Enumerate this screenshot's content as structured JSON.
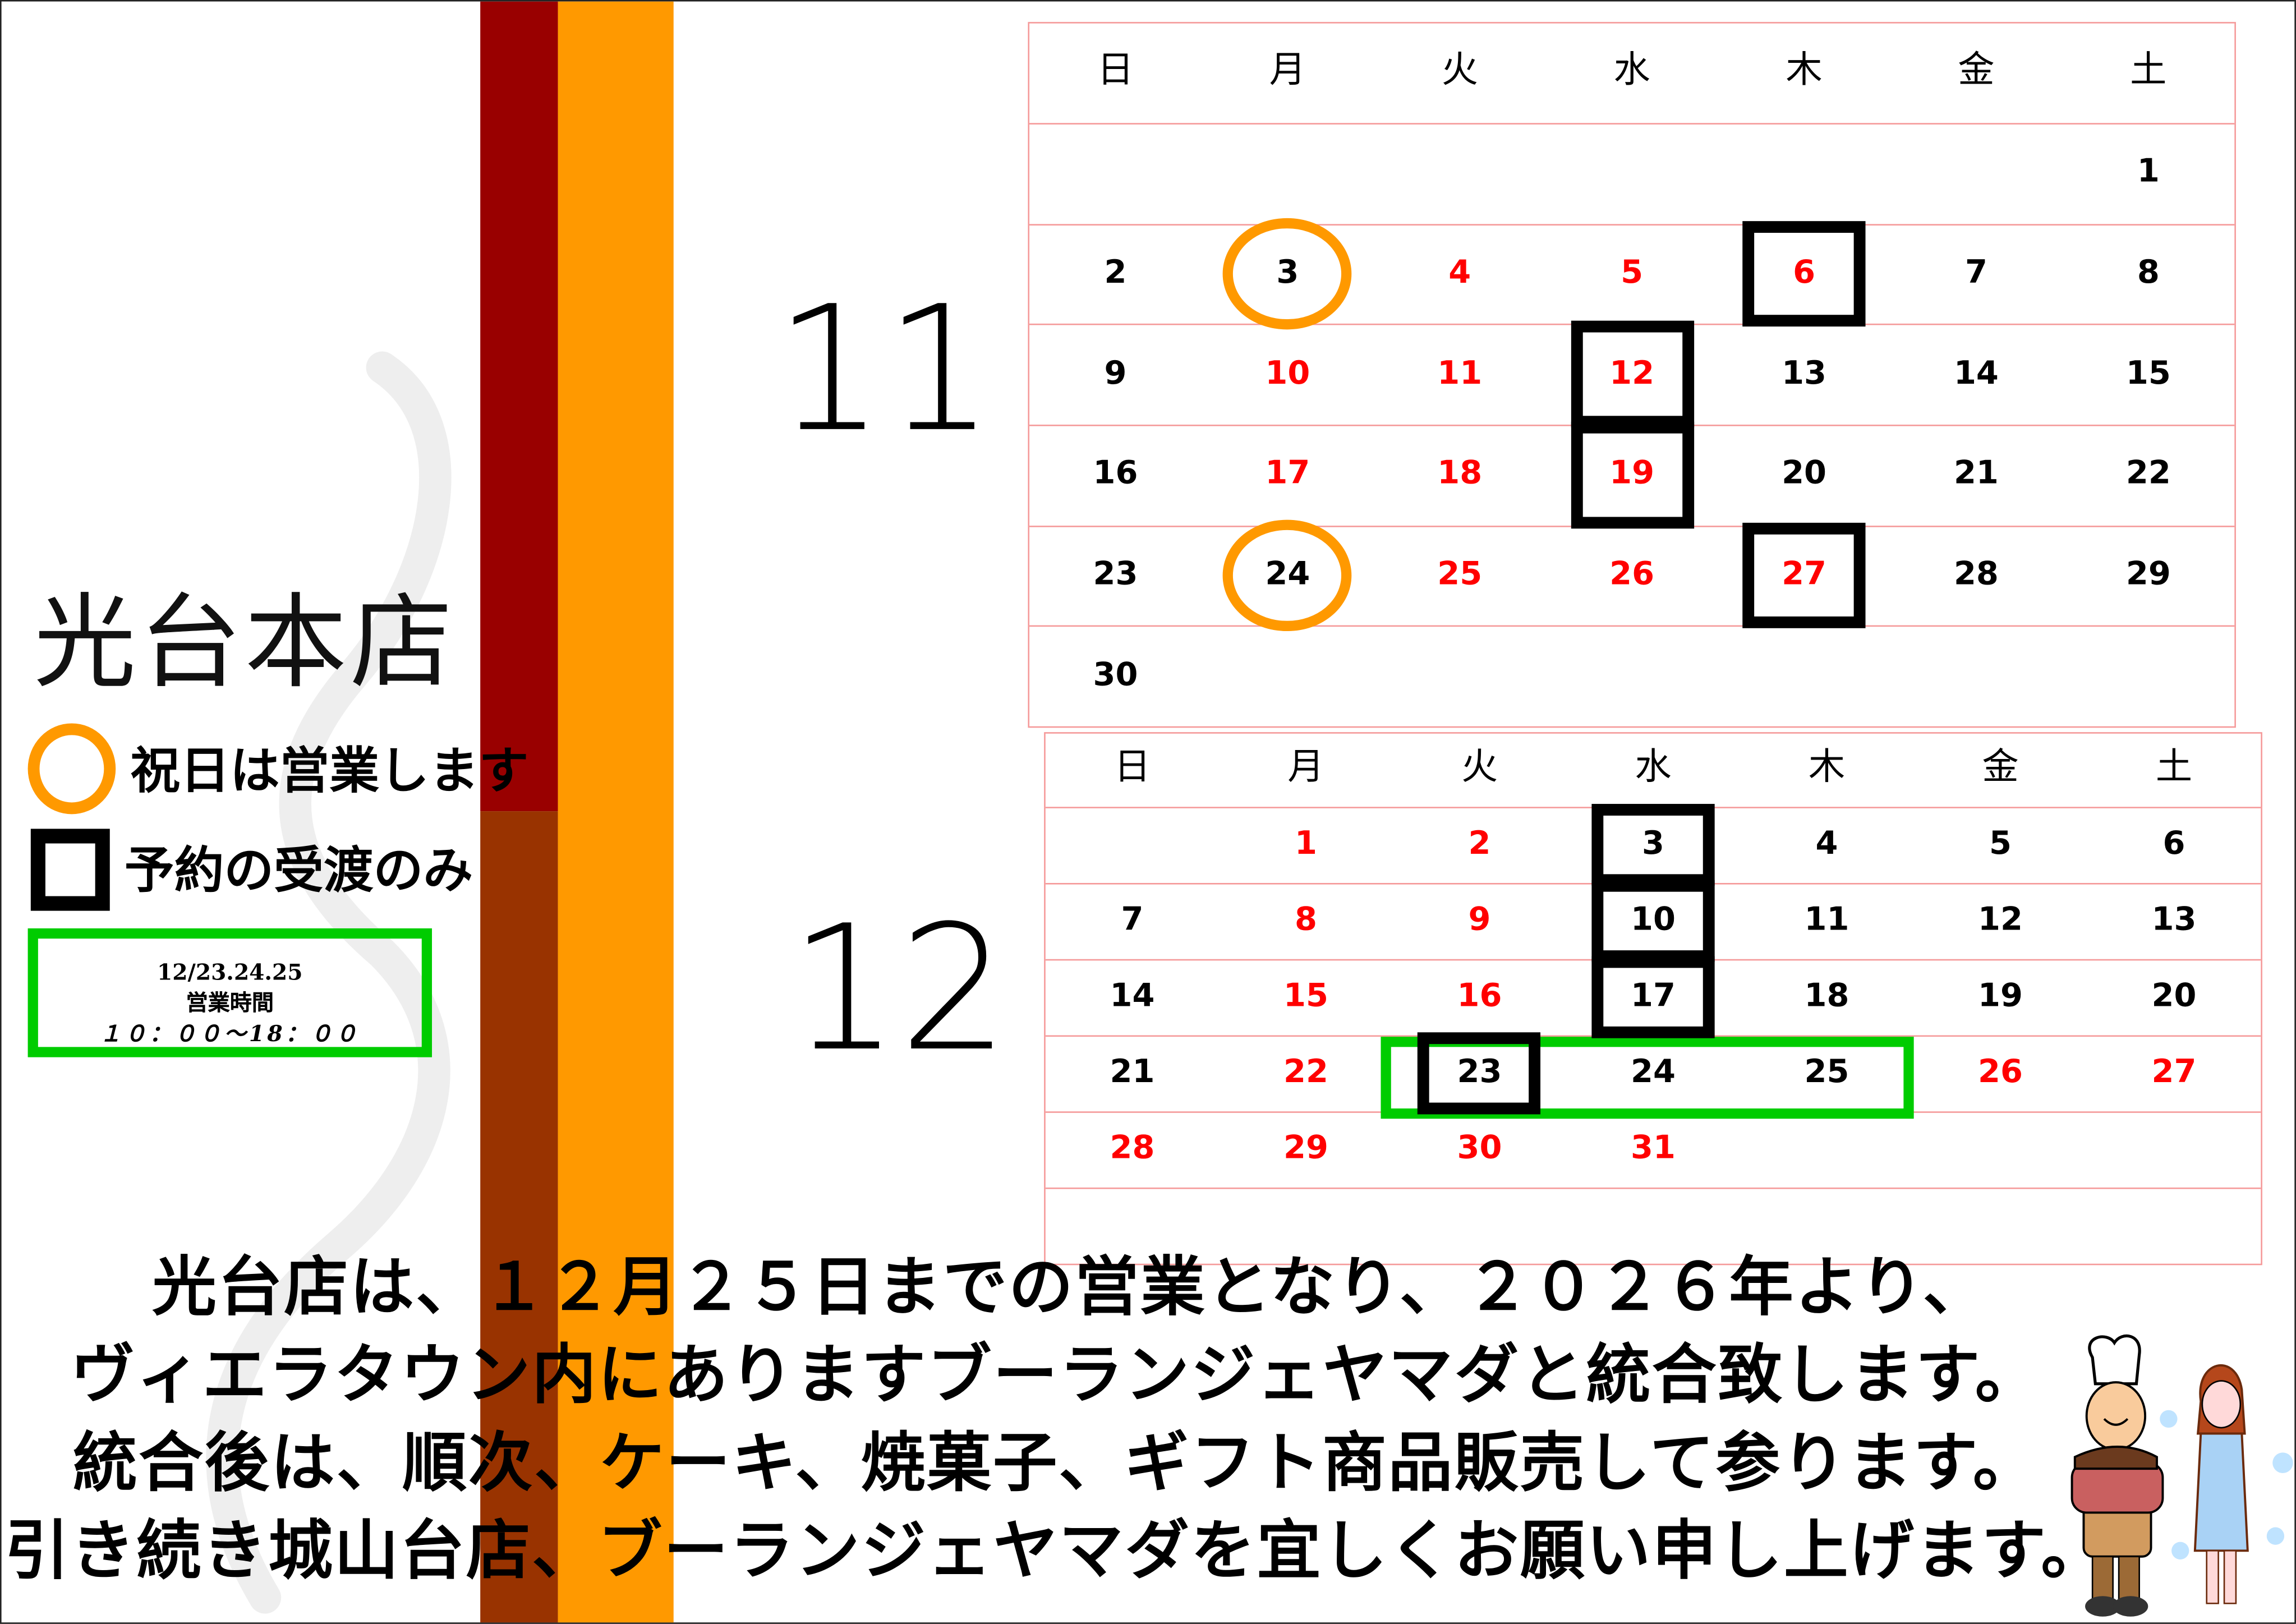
{
  "store_name": "光台本店",
  "legend": {
    "circle_label": "祝日は営業します",
    "square_label": "予約の受渡のみ",
    "hours_dates": "12/23.24.25",
    "hours_title": "営業時間",
    "hours_time": "１０：００～18：００"
  },
  "colors": {
    "dark_red": "#990000",
    "brown": "#993300",
    "orange": "#FF9900",
    "green": "#00CC00",
    "holiday_red": "#FF0000",
    "grid": "#F59A9A"
  },
  "weekdays": [
    "日",
    "月",
    "火",
    "水",
    "木",
    "金",
    "土"
  ],
  "november": {
    "label": "11",
    "weeks": [
      [
        "",
        "",
        "",
        "",
        "",
        "",
        "1"
      ],
      [
        "2",
        "3",
        "4",
        "5",
        "6",
        "7",
        "8"
      ],
      [
        "9",
        "10",
        "11",
        "12",
        "13",
        "14",
        "15"
      ],
      [
        "16",
        "17",
        "18",
        "19",
        "20",
        "21",
        "22"
      ],
      [
        "23",
        "24",
        "25",
        "26",
        "27",
        "28",
        "29"
      ],
      [
        "30",
        "",
        "",
        "",
        "",
        "",
        ""
      ]
    ],
    "red_days": [
      "4",
      "5",
      "6",
      "10",
      "11",
      "12",
      "17",
      "18",
      "19",
      "25",
      "26",
      "27"
    ],
    "circle_days": [
      "3",
      "24"
    ],
    "square_days": [
      "6",
      "12",
      "19",
      "27"
    ]
  },
  "december": {
    "label": "12",
    "weeks": [
      [
        "",
        "1",
        "2",
        "3",
        "4",
        "5",
        "6"
      ],
      [
        "7",
        "8",
        "9",
        "10",
        "11",
        "12",
        "13"
      ],
      [
        "14",
        "15",
        "16",
        "17",
        "18",
        "19",
        "20"
      ],
      [
        "21",
        "22",
        "23",
        "24",
        "25",
        "26",
        "27"
      ],
      [
        "28",
        "29",
        "30",
        "31",
        "",
        "",
        ""
      ],
      [
        "",
        "",
        "",
        "",
        "",
        "",
        ""
      ]
    ],
    "red_days": [
      "1",
      "2",
      "8",
      "9",
      "15",
      "16",
      "22",
      "26",
      "27",
      "28",
      "29",
      "30",
      "31"
    ],
    "circle_days": [],
    "square_days": [
      "3",
      "10",
      "17",
      "23"
    ],
    "green_days": [
      "23",
      "24",
      "25"
    ]
  },
  "message": [
    "光台店は、１２月２５日までの営業となり、２０２６年より、",
    "ヴィエラタウン内にありますブーランジェヤマダと統合致します。",
    "統合後は、順次、ケーキ、焼菓子、ギフト商品販売して参ります。",
    "引き続き城山台店、ブーランジェヤマダを宜しくお願い申し上げます。"
  ]
}
